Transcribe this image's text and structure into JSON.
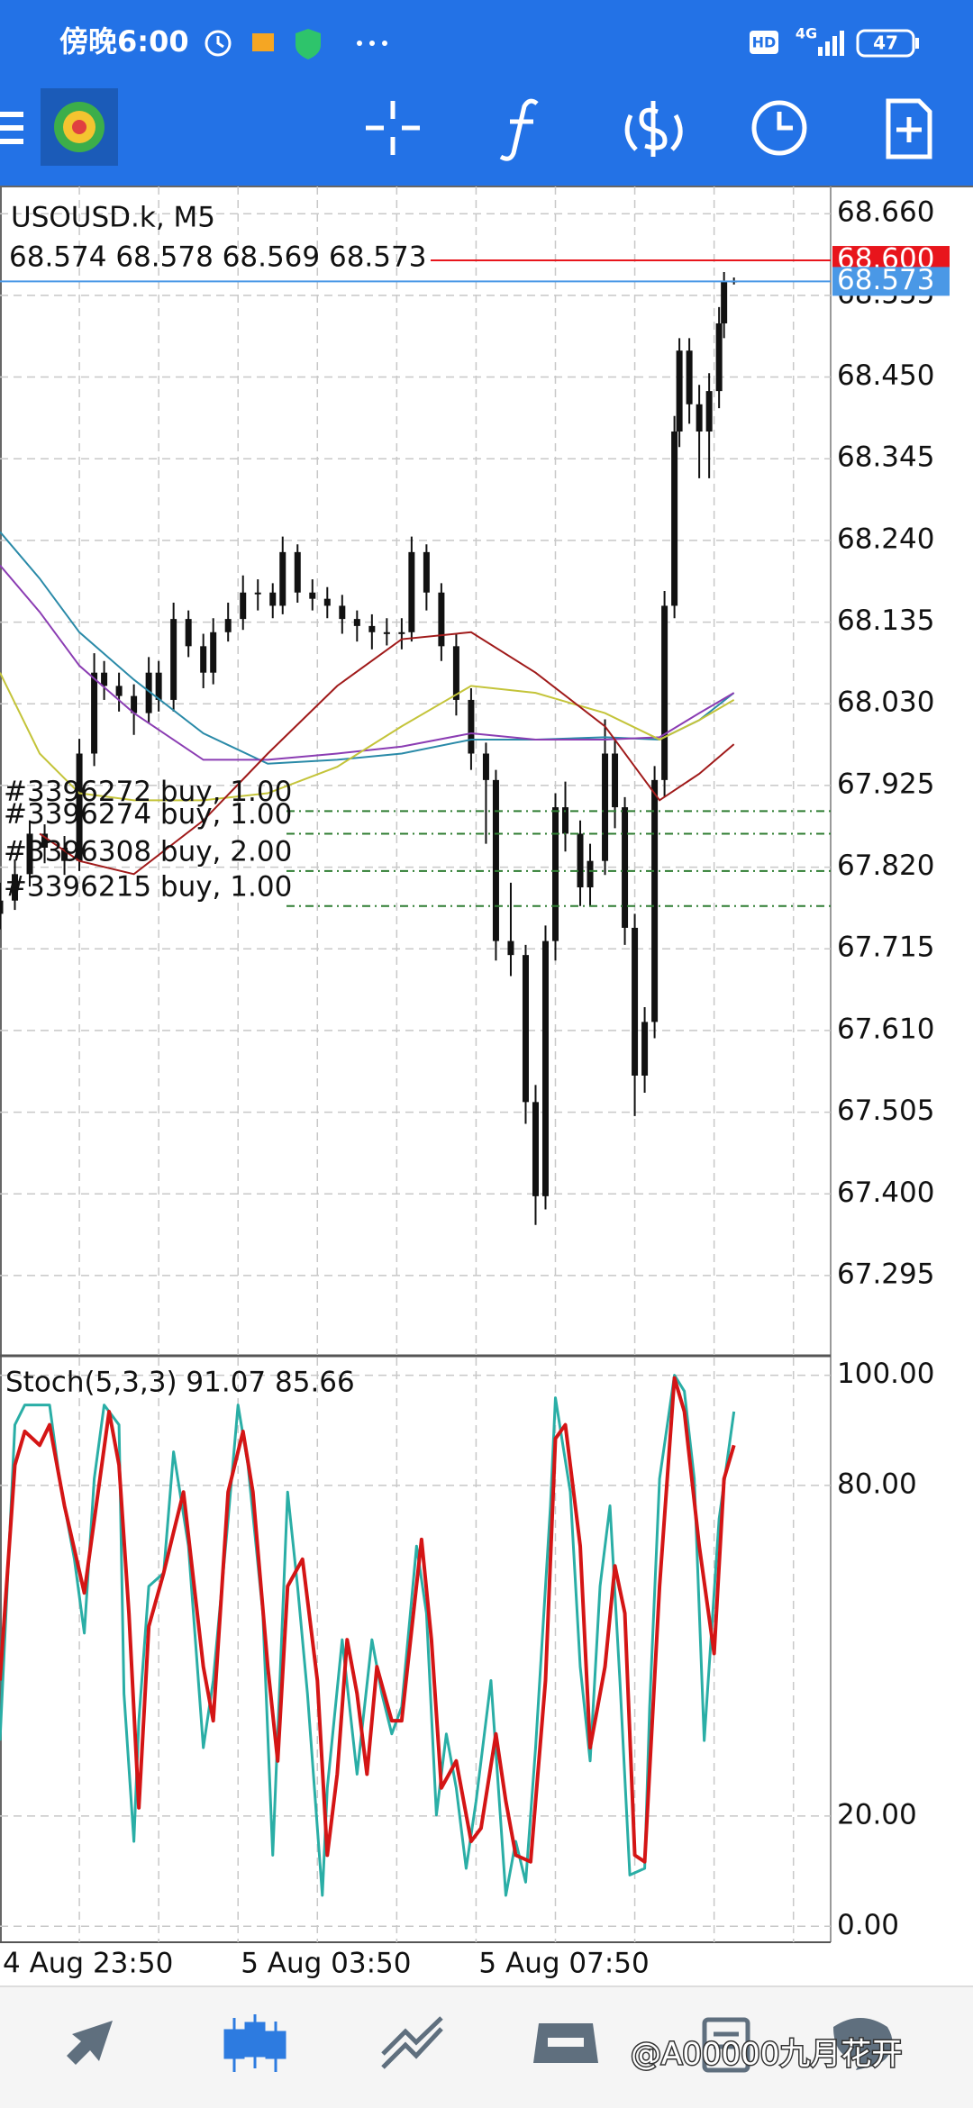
{
  "status_bar": {
    "time": "傍晚6:00",
    "hd": "HD",
    "network": "4G",
    "battery": "47"
  },
  "watermark": "@A00000九月花开",
  "chart_data": [
    {
      "type": "candlestick",
      "title": "USOUSD.k, M5",
      "ohlc_text": "68.574 68.578 68.569 68.573",
      "candle_color": "#111111",
      "grid": true,
      "xlim": [
        0,
        167.5
      ],
      "xgrid": [
        16,
        32,
        48,
        64,
        80,
        96,
        112,
        128,
        144,
        160
      ],
      "ylim": [
        67.193,
        68.695
      ],
      "yticks": [
        {
          "value": 68.66,
          "label": "68.660"
        },
        {
          "value": 68.555,
          "label": "68.555"
        },
        {
          "value": 68.45,
          "label": "68.450"
        },
        {
          "value": 68.345,
          "label": "68.345"
        },
        {
          "value": 68.24,
          "label": "68.240"
        },
        {
          "value": 68.135,
          "label": "68.135"
        },
        {
          "value": 68.03,
          "label": "68.030"
        },
        {
          "value": 67.925,
          "label": "67.925"
        },
        {
          "value": 67.82,
          "label": "67.820"
        },
        {
          "value": 67.715,
          "label": "67.715"
        },
        {
          "value": 67.61,
          "label": "67.610"
        },
        {
          "value": 67.505,
          "label": "67.505"
        },
        {
          "value": 67.4,
          "label": "67.400"
        },
        {
          "value": 67.295,
          "label": "67.295"
        }
      ],
      "x": [
        0,
        3,
        6,
        9,
        13,
        16,
        19,
        21,
        24,
        27,
        30,
        32,
        35,
        38,
        41,
        43,
        46,
        49,
        52,
        55,
        57,
        60,
        63,
        66,
        69,
        72,
        75,
        78,
        81,
        83,
        86,
        89,
        92,
        95,
        98,
        100,
        103,
        106,
        108,
        110,
        112,
        114,
        117,
        119,
        122,
        124,
        126,
        128,
        130,
        132,
        134,
        136,
        137,
        139,
        141,
        143,
        145,
        146,
        148
      ],
      "open": [
        67.76,
        67.777,
        67.811,
        67.863,
        67.845,
        67.828,
        67.966,
        68.07,
        68.053,
        68.04,
        68.018,
        68.07,
        68.035,
        68.139,
        68.104,
        68.07,
        68.122,
        68.139,
        68.173,
        68.173,
        68.156,
        68.225,
        68.173,
        68.165,
        68.156,
        68.139,
        68.13,
        68.122,
        68.122,
        68.122,
        68.225,
        68.173,
        68.104,
        68.035,
        67.966,
        67.932,
        67.725,
        67.707,
        67.518,
        67.397,
        67.725,
        67.897,
        67.863,
        67.794,
        67.828,
        67.966,
        67.897,
        67.742,
        67.552,
        67.621,
        67.932,
        68.156,
        68.38,
        68.484,
        68.415,
        68.38,
        68.432,
        68.519,
        68.574
      ],
      "high": [
        67.8,
        67.83,
        67.88,
        67.875,
        67.86,
        67.985,
        68.095,
        68.085,
        68.07,
        68.055,
        68.09,
        68.085,
        68.16,
        68.15,
        68.12,
        68.14,
        68.16,
        68.195,
        68.19,
        68.185,
        68.245,
        68.235,
        68.19,
        68.18,
        68.17,
        68.15,
        68.145,
        68.14,
        68.14,
        68.245,
        68.235,
        68.185,
        68.12,
        68.05,
        67.98,
        67.945,
        67.8,
        67.72,
        67.54,
        67.745,
        67.915,
        67.93,
        67.88,
        67.85,
        68.01,
        67.985,
        67.91,
        67.76,
        67.64,
        67.95,
        68.175,
        68.4,
        68.5,
        68.5,
        68.44,
        68.455,
        68.54,
        68.585,
        68.578
      ],
      "low": [
        67.74,
        67.765,
        67.795,
        67.825,
        67.81,
        67.815,
        67.95,
        68.035,
        68.02,
        67.99,
        68.005,
        68.02,
        68.02,
        68.09,
        68.05,
        68.055,
        68.11,
        68.125,
        68.15,
        68.14,
        68.145,
        68.16,
        68.15,
        68.14,
        68.12,
        68.11,
        68.1,
        68.105,
        68.1,
        68.11,
        68.15,
        68.085,
        68.015,
        67.945,
        67.85,
        67.7,
        67.68,
        67.49,
        67.36,
        67.38,
        67.7,
        67.84,
        67.77,
        67.77,
        67.81,
        67.87,
        67.72,
        67.5,
        67.53,
        67.6,
        67.91,
        68.14,
        68.36,
        68.39,
        68.32,
        68.32,
        68.41,
        68.5,
        68.569
      ],
      "close": [
        67.777,
        67.811,
        67.863,
        67.845,
        67.828,
        67.966,
        68.07,
        68.053,
        68.04,
        68.018,
        68.07,
        68.035,
        68.139,
        68.104,
        68.07,
        68.122,
        68.139,
        68.173,
        68.173,
        68.156,
        68.225,
        68.173,
        68.165,
        68.156,
        68.139,
        68.13,
        68.122,
        68.122,
        68.122,
        68.225,
        68.173,
        68.104,
        68.035,
        67.966,
        67.932,
        67.725,
        67.707,
        67.518,
        67.397,
        67.725,
        67.897,
        67.863,
        67.794,
        67.828,
        67.966,
        67.897,
        67.742,
        67.552,
        67.621,
        67.932,
        68.156,
        68.38,
        68.484,
        68.415,
        68.38,
        68.432,
        68.519,
        68.573,
        68.573
      ],
      "moving_averages": {
        "x": [
          0,
          8,
          16,
          27,
          41,
          54,
          68,
          81,
          95,
          108,
          122,
          133,
          141,
          148
        ],
        "series": [
          {
            "color": "#2a8aa8",
            "values": [
              68.251,
              68.191,
              68.122,
              68.061,
              67.992,
              67.953,
              67.958,
              67.966,
              67.984,
              67.984,
              67.987,
              67.984,
              68.009,
              68.044
            ]
          },
          {
            "color": "#8b3db3",
            "values": [
              68.208,
              68.148,
              68.079,
              68.018,
              67.958,
              67.958,
              67.966,
              67.975,
              67.992,
              67.984,
              67.984,
              67.987,
              68.018,
              68.044
            ]
          },
          {
            "color": "#c4c43a",
            "values": [
              68.07,
              67.966,
              67.915,
              67.906,
              67.906,
              67.915,
              67.949,
              68.001,
              68.053,
              68.044,
              68.018,
              67.984,
              68.009,
              68.035
            ]
          },
          {
            "color": "#a01a1a",
            "values": [
              null,
              67.863,
              67.828,
              67.811,
              67.88,
              67.966,
              68.053,
              68.113,
              68.122,
              68.07,
              68.001,
              67.906,
              67.94,
              67.978
            ]
          }
        ]
      },
      "order_color": "#2f7d32",
      "orders": [
        {
          "label": "#3396272 buy, 1.00",
          "price": 67.892
        },
        {
          "label": "#3396274 buy, 1.00",
          "price": 67.863
        },
        {
          "label": "#3396308 buy, 2.00",
          "price": 67.815
        },
        {
          "label": "#3396215 buy, 1.00",
          "price": 67.77
        }
      ],
      "ask": {
        "value": 68.6,
        "label": "68.600",
        "color": "#e8151c"
      },
      "bid": {
        "value": 68.573,
        "label": "68.573",
        "color": "#4a98e6"
      }
    },
    {
      "type": "line",
      "title": "Stoch(5,3,3) 91.07 85.66",
      "grid": true,
      "xlim": [
        0,
        167.5
      ],
      "xgrid": [
        16,
        32,
        48,
        64,
        80,
        96,
        112,
        128,
        144,
        160
      ],
      "xticks": [
        {
          "value": 0,
          "label": "4 Aug 23:50"
        },
        {
          "value": 48,
          "label": "5 Aug 03:50"
        },
        {
          "value": 96,
          "label": "5 Aug 07:50"
        }
      ],
      "ylim": [
        -2.9,
        103.2
      ],
      "yticks": [
        {
          "value": 100,
          "label": "100.00"
        },
        {
          "value": 80,
          "label": "80.00"
        },
        {
          "value": 20,
          "label": "20.00"
        },
        {
          "value": 0,
          "label": "0.00"
        }
      ],
      "series": [
        {
          "color": "#2aaea6",
          "width": 3,
          "x": [
            0,
            3,
            5,
            10,
            12,
            15,
            17,
            19,
            21,
            24,
            25,
            27,
            28,
            30,
            33,
            35,
            38,
            41,
            43,
            46,
            48,
            50,
            53,
            55,
            57,
            58,
            60,
            62,
            65,
            66,
            69,
            72,
            75,
            77,
            79,
            81,
            84,
            86,
            88,
            90,
            92,
            94,
            96,
            99,
            102,
            104,
            106,
            108,
            111,
            112,
            115,
            117,
            119,
            121,
            123,
            125,
            127,
            130,
            131,
            133,
            136,
            138,
            140,
            142,
            145,
            148
          ],
          "values": [
            33.7,
            91.0,
            94.6,
            94.6,
            81.2,
            66.6,
            53.2,
            81.2,
            94.6,
            91.0,
            42.2,
            15.4,
            37.3,
            61.7,
            64.1,
            86.1,
            69.0,
            32.4,
            44.6,
            73.9,
            94.6,
            83.7,
            56.8,
            12.9,
            56.8,
            78.8,
            61.7,
            42.2,
            5.6,
            25.1,
            52.0,
            27.6,
            52.0,
            42.2,
            34.9,
            39.8,
            69.0,
            56.8,
            20.2,
            34.9,
            25.1,
            10.5,
            22.7,
            44.6,
            5.6,
            15.4,
            8.0,
            32.4,
            76.3,
            95.9,
            78.8,
            47.1,
            30.0,
            61.7,
            76.3,
            44.6,
            9.3,
            10.5,
            39.8,
            81.2,
            100.0,
            97.1,
            81.2,
            33.7,
            73.9,
            93.4
          ]
        },
        {
          "color": "#d41515",
          "width": 4,
          "x": [
            0,
            3,
            5,
            8,
            10,
            13,
            17,
            22,
            24,
            26,
            28,
            30,
            33,
            35,
            37,
            41,
            43,
            46,
            49,
            51,
            54,
            56,
            58,
            61,
            64,
            66,
            68,
            70,
            72,
            74,
            76,
            79,
            81,
            85,
            87,
            89,
            92,
            95,
            97,
            100,
            102,
            104,
            107,
            110,
            112,
            114,
            117,
            119,
            122,
            124,
            126,
            128,
            130,
            133,
            136,
            138,
            141,
            144,
            146,
            148
          ],
          "values": [
            44.6,
            83.7,
            89.8,
            87.3,
            91.0,
            76.3,
            60.5,
            93.4,
            83.7,
            56.8,
            21.5,
            54.4,
            64.1,
            71.5,
            78.8,
            47.1,
            37.3,
            78.8,
            89.8,
            78.8,
            47.1,
            30.0,
            61.7,
            66.6,
            44.6,
            12.9,
            27.6,
            52.0,
            42.2,
            27.6,
            47.1,
            37.3,
            37.3,
            70.2,
            52.0,
            25.1,
            30.0,
            15.4,
            17.8,
            34.9,
            22.7,
            12.9,
            11.7,
            44.6,
            88.5,
            91.0,
            69.0,
            32.4,
            47.1,
            65.4,
            56.8,
            12.9,
            11.7,
            61.7,
            99.5,
            93.4,
            69.0,
            49.5,
            81.2,
            87.3
          ]
        }
      ]
    }
  ]
}
